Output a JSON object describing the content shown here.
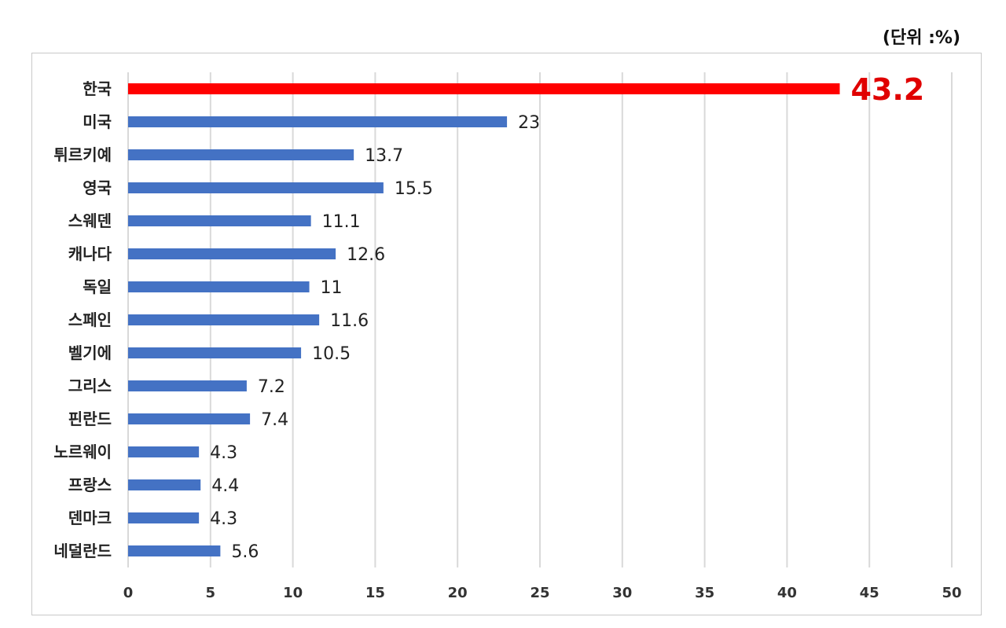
{
  "unit_label": "(단위 :%)",
  "colors": {
    "bar": "#4472c4",
    "highlight": "#ff0000",
    "highlight_text": "#e00000",
    "grid": "#d9d9d9"
  },
  "chart_data": {
    "type": "bar",
    "orientation": "horizontal",
    "categories": [
      "한국",
      "미국",
      "튀르키예",
      "영국",
      "스웨덴",
      "캐나다",
      "독일",
      "스페인",
      "벨기에",
      "그리스",
      "핀란드",
      "노르웨이",
      "프랑스",
      "덴마크",
      "네덜란드"
    ],
    "values": [
      43.2,
      23,
      13.7,
      15.5,
      11.1,
      12.6,
      11,
      11.6,
      10.5,
      7.2,
      7.4,
      4.3,
      4.4,
      4.3,
      5.6
    ],
    "value_labels": [
      "43.2",
      "23",
      "13.7",
      "15.5",
      "11.1",
      "12.6",
      "11",
      "11.6",
      "10.5",
      "7.2",
      "7.4",
      "4.3",
      "4.4",
      "4.3",
      "5.6"
    ],
    "highlight_index": 0,
    "xlim": [
      0,
      50
    ],
    "xticks": [
      0,
      5,
      10,
      15,
      20,
      25,
      30,
      35,
      40,
      45,
      50
    ],
    "grid": true,
    "legend": "none"
  }
}
